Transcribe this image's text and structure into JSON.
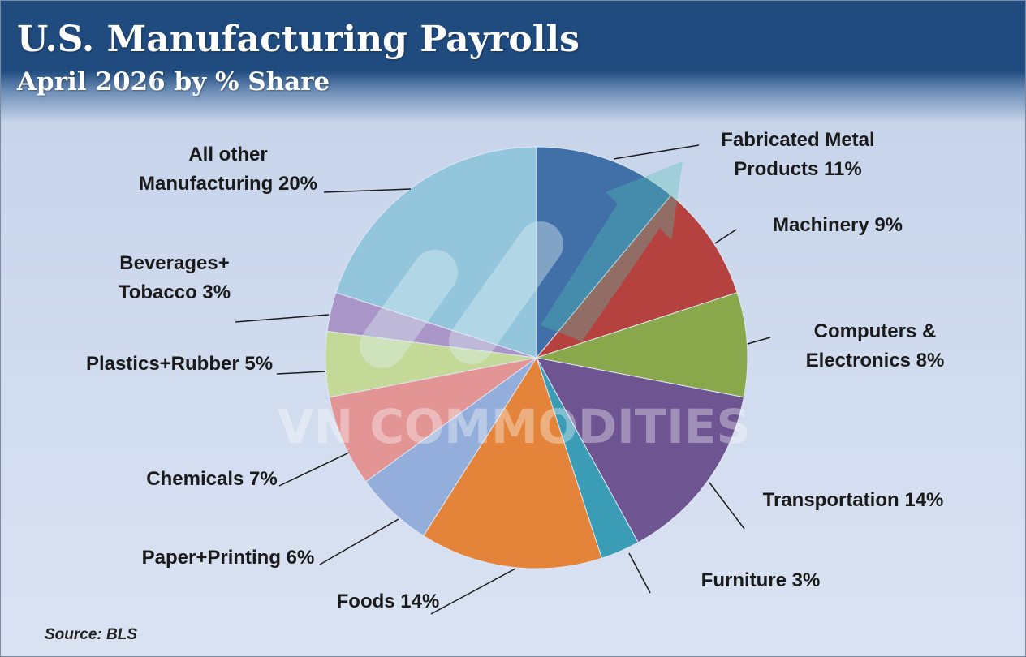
{
  "title": "U.S. Manufacturing Payrolls",
  "subtitle": "April 2026 by % Share",
  "source": "Source: BLS",
  "watermark": "VN COMMODITIES",
  "chart_data": {
    "type": "pie",
    "slices": [
      {
        "label": [
          "Fabricated Metal",
          "Products 11%"
        ],
        "value": 11,
        "color": "#4170a8"
      },
      {
        "label": [
          "Machinery 9%"
        ],
        "value": 9,
        "color": "#b5423f"
      },
      {
        "label": [
          "Computers &",
          "Electronics 8%"
        ],
        "value": 8,
        "color": "#88a84b"
      },
      {
        "label": [
          "Transportation 14%"
        ],
        "value": 14,
        "color": "#6e5592"
      },
      {
        "label": [
          "Furniture 3%"
        ],
        "value": 3,
        "color": "#3b9cb6"
      },
      {
        "label": [
          "Foods 14%"
        ],
        "value": 14,
        "color": "#e3843a"
      },
      {
        "label": [
          "Paper+Printing 6%"
        ],
        "value": 6,
        "color": "#94aedb"
      },
      {
        "label": [
          "Chemicals 7%"
        ],
        "value": 7,
        "color": "#e39595"
      },
      {
        "label": [
          "Plastics+Rubber 5%"
        ],
        "value": 5,
        "color": "#c4d997"
      },
      {
        "label": [
          "Beverages+",
          "Tobacco 3%"
        ],
        "value": 3,
        "color": "#a995c8"
      },
      {
        "label": [
          "All other",
          "Manufacturing 20%"
        ],
        "value": 20,
        "color": "#93c6dc"
      }
    ]
  }
}
